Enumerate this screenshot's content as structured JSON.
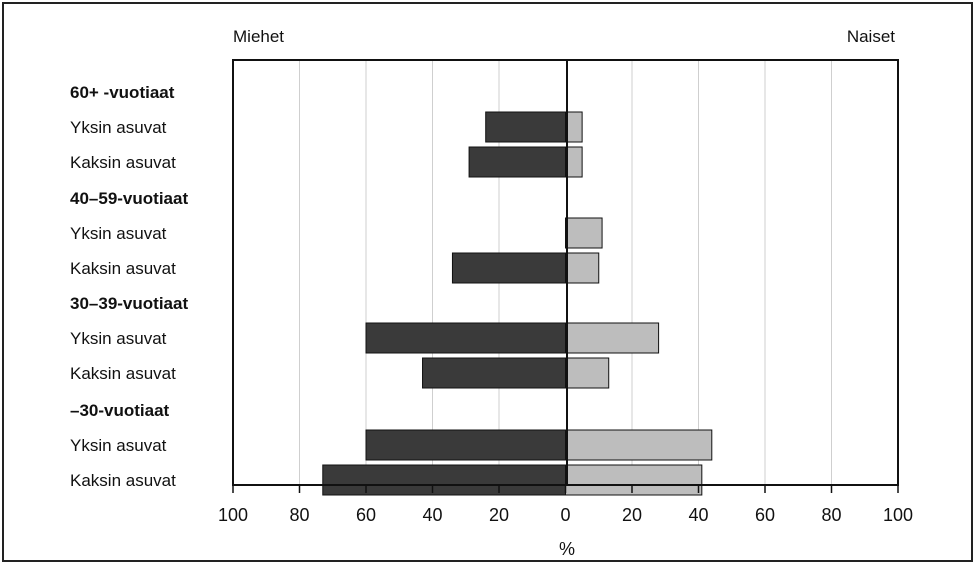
{
  "chart_data": {
    "type": "bar",
    "orientation": "horizontal-diverging",
    "left_label": "Miehet",
    "right_label": "Naiset",
    "xlabel": "%",
    "xlim": [
      -100,
      100
    ],
    "tick_values": [
      -100,
      -80,
      -60,
      -40,
      -20,
      0,
      20,
      40,
      60,
      80,
      100
    ],
    "tick_labels": [
      "100",
      "80",
      "60",
      "40",
      "20",
      "0",
      "20",
      "40",
      "60",
      "80",
      "100"
    ],
    "grid": true,
    "groups": [
      {
        "title": "60+ -vuotiaat",
        "rows": [
          {
            "label": "Yksin asuvat",
            "men": 24,
            "women": 5
          },
          {
            "label": "Kaksin asuvat",
            "men": 29,
            "women": 5
          }
        ]
      },
      {
        "title": "40–59-vuotiaat",
        "rows": [
          {
            "label": "Yksin asuvat",
            "men": 0,
            "women": 11
          },
          {
            "label": "Kaksin asuvat",
            "men": 34,
            "women": 10
          }
        ]
      },
      {
        "title": "30–39-vuotiaat",
        "rows": [
          {
            "label": "Yksin asuvat",
            "men": 60,
            "women": 28
          },
          {
            "label": "Kaksin asuvat",
            "men": 43,
            "women": 13
          }
        ]
      },
      {
        "title": "–30-vuotiaat",
        "rows": [
          {
            "label": "Yksin asuvat",
            "men": 60,
            "women": 44
          },
          {
            "label": "Kaksin asuvat",
            "men": 73,
            "women": 41
          }
        ]
      }
    ],
    "colors": {
      "men": "#3a3a3a",
      "women": "#bdbdbd",
      "grid": "#cfcfcf",
      "axis": "#111111"
    }
  }
}
